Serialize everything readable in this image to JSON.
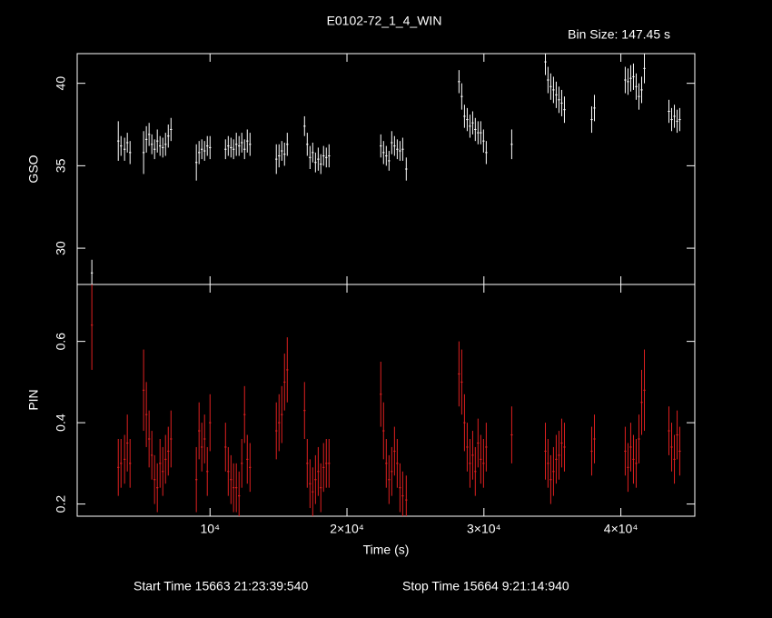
{
  "chart_data": [
    {
      "type": "errorbar",
      "title": "E0102-72_1_4_WIN",
      "subtitle": "Bin Size: 147.45 s",
      "ylabel": "GSO",
      "color": "#ffffff",
      "x": [
        1370,
        3300,
        3500,
        3760,
        3960,
        4160,
        5150,
        5350,
        5550,
        5750,
        5950,
        6150,
        6350,
        6550,
        6750,
        6950,
        7150,
        9000,
        9200,
        9400,
        9600,
        9800,
        10000,
        11130,
        11330,
        11530,
        11720,
        11920,
        12120,
        12320,
        12520,
        12720,
        12920,
        14840,
        15040,
        15240,
        15440,
        15640,
        16900,
        17100,
        17300,
        17500,
        17700,
        17900,
        18090,
        18290,
        18490,
        18690,
        22470,
        22670,
        22870,
        23070,
        23270,
        23470,
        23670,
        23870,
        24070,
        24330,
        28180,
        28380,
        28580,
        28780,
        28980,
        29180,
        29370,
        29570,
        29770,
        29970,
        30170,
        32030,
        34490,
        34680,
        34880,
        35080,
        35280,
        35480,
        35680,
        35880,
        37870,
        38070,
        40320,
        40520,
        40720,
        40920,
        41120,
        41320,
        41520,
        41720,
        43510,
        43710,
        43910,
        44110,
        44300
      ],
      "values": [
        28.5,
        36.5,
        36.2,
        36.0,
        36.4,
        35.8,
        35.8,
        36.6,
        36.9,
        36.3,
        36.0,
        36.5,
        36.2,
        36.1,
        36.3,
        36.8,
        37.2,
        35.2,
        35.8,
        36.0,
        35.9,
        36.2,
        36.1,
        36.0,
        36.2,
        36.1,
        36.0,
        36.3,
        36.2,
        36.4,
        36.0,
        36.5,
        36.3,
        35.4,
        35.6,
        35.9,
        35.7,
        36.3,
        37.4,
        36.3,
        35.5,
        35.8,
        35.2,
        35.4,
        35.1,
        35.6,
        35.5,
        35.6,
        36.2,
        35.8,
        35.6,
        35.3,
        36.4,
        36.2,
        36.0,
        35.9,
        36.0,
        34.8,
        40.1,
        39.2,
        38.0,
        37.8,
        37.4,
        37.6,
        37.2,
        37.0,
        37.0,
        36.5,
        35.8,
        36.3,
        41.3,
        40.2,
        39.8,
        39.6,
        39.3,
        39.0,
        38.8,
        38.4,
        37.8,
        38.5,
        40.2,
        40.1,
        40.3,
        40.4,
        39.8,
        39.2,
        39.6,
        40.9,
        38.3,
        37.8,
        38.0,
        37.7,
        37.8
      ],
      "errors": [
        0.8,
        1.2,
        0.6,
        0.7,
        0.6,
        0.7,
        1.3,
        0.8,
        0.7,
        0.6,
        0.6,
        0.7,
        0.6,
        0.6,
        0.7,
        0.7,
        0.7,
        1.1,
        0.7,
        0.6,
        0.6,
        0.6,
        0.7,
        0.6,
        0.6,
        0.6,
        0.6,
        0.7,
        0.6,
        0.6,
        0.6,
        0.7,
        0.7,
        0.9,
        0.7,
        0.6,
        0.7,
        0.7,
        0.6,
        0.7,
        0.7,
        0.6,
        0.6,
        0.7,
        0.6,
        0.6,
        0.6,
        0.7,
        0.7,
        0.7,
        0.6,
        0.6,
        0.7,
        0.6,
        0.6,
        0.6,
        0.7,
        0.7,
        0.7,
        0.8,
        0.7,
        0.7,
        0.7,
        0.7,
        0.7,
        0.7,
        0.7,
        0.7,
        0.7,
        0.9,
        0.8,
        0.8,
        0.8,
        0.8,
        0.8,
        0.8,
        0.8,
        0.8,
        0.8,
        0.8,
        0.8,
        0.8,
        0.8,
        0.8,
        0.8,
        0.8,
        0.8,
        0.9,
        0.7,
        0.7,
        0.7,
        0.7,
        0.7
      ],
      "xlim": [
        300,
        45400
      ],
      "ylim": [
        27.8,
        41.8
      ],
      "yticks": [
        30,
        35,
        40
      ]
    },
    {
      "type": "errorbar",
      "ylabel": "PIN",
      "xlabel": "Time (s)",
      "color": "#e02020",
      "x": [
        1370,
        3300,
        3500,
        3760,
        3960,
        4160,
        5150,
        5350,
        5550,
        5750,
        5950,
        6150,
        6350,
        6550,
        6750,
        6950,
        7150,
        9000,
        9200,
        9400,
        9600,
        9800,
        10000,
        11130,
        11330,
        11530,
        11720,
        11920,
        12120,
        12320,
        12520,
        12720,
        12920,
        14840,
        15040,
        15240,
        15440,
        15640,
        16900,
        17100,
        17300,
        17500,
        17700,
        17900,
        18090,
        18290,
        18490,
        18690,
        22470,
        22670,
        22870,
        23070,
        23270,
        23470,
        23670,
        23870,
        24070,
        24330,
        28180,
        28380,
        28580,
        28780,
        28980,
        29180,
        29370,
        29570,
        29770,
        29970,
        30170,
        32030,
        34490,
        34680,
        34880,
        35080,
        35280,
        35480,
        35680,
        35880,
        37870,
        38070,
        40320,
        40520,
        40720,
        40920,
        41120,
        41320,
        41520,
        41720,
        43510,
        43710,
        43910,
        44110,
        44300
      ],
      "values": [
        0.64,
        0.29,
        0.3,
        0.31,
        0.35,
        0.3,
        0.48,
        0.42,
        0.36,
        0.32,
        0.26,
        0.24,
        0.3,
        0.28,
        0.31,
        0.33,
        0.36,
        0.26,
        0.38,
        0.34,
        0.36,
        0.28,
        0.4,
        0.34,
        0.28,
        0.26,
        0.24,
        0.24,
        0.22,
        0.3,
        0.42,
        0.31,
        0.29,
        0.38,
        0.4,
        0.42,
        0.5,
        0.53,
        0.43,
        0.3,
        0.25,
        0.23,
        0.26,
        0.28,
        0.24,
        0.29,
        0.3,
        0.3,
        0.47,
        0.38,
        0.3,
        0.26,
        0.28,
        0.33,
        0.3,
        0.24,
        0.22,
        0.21,
        0.52,
        0.5,
        0.4,
        0.34,
        0.3,
        0.32,
        0.28,
        0.35,
        0.31,
        0.3,
        0.34,
        0.37,
        0.33,
        0.3,
        0.26,
        0.28,
        0.31,
        0.32,
        0.35,
        0.34,
        0.33,
        0.36,
        0.33,
        0.29,
        0.34,
        0.31,
        0.3,
        0.36,
        0.45,
        0.48,
        0.38,
        0.34,
        0.31,
        0.37,
        0.33
      ],
      "errors": [
        0.11,
        0.07,
        0.06,
        0.06,
        0.07,
        0.06,
        0.1,
        0.08,
        0.07,
        0.06,
        0.06,
        0.06,
        0.06,
        0.06,
        0.06,
        0.06,
        0.07,
        0.08,
        0.07,
        0.06,
        0.06,
        0.06,
        0.07,
        0.06,
        0.06,
        0.06,
        0.06,
        0.06,
        0.06,
        0.06,
        0.07,
        0.06,
        0.06,
        0.07,
        0.07,
        0.07,
        0.07,
        0.08,
        0.07,
        0.06,
        0.06,
        0.06,
        0.06,
        0.06,
        0.06,
        0.06,
        0.06,
        0.06,
        0.08,
        0.07,
        0.06,
        0.06,
        0.06,
        0.06,
        0.06,
        0.06,
        0.06,
        0.06,
        0.08,
        0.08,
        0.07,
        0.06,
        0.06,
        0.06,
        0.06,
        0.06,
        0.06,
        0.06,
        0.06,
        0.07,
        0.07,
        0.06,
        0.06,
        0.06,
        0.06,
        0.06,
        0.06,
        0.06,
        0.06,
        0.06,
        0.06,
        0.06,
        0.06,
        0.06,
        0.06,
        0.06,
        0.08,
        0.1,
        0.06,
        0.06,
        0.06,
        0.06,
        0.06
      ],
      "xlim": [
        300,
        45400
      ],
      "ylim": [
        0.17,
        0.74
      ],
      "yticks": [
        0.2,
        0.4,
        0.6
      ],
      "xticks": [
        {
          "value": 10000,
          "label": "10⁴"
        },
        {
          "value": 20000,
          "label": "2×10⁴"
        },
        {
          "value": 30000,
          "label": "3×10⁴"
        },
        {
          "value": 40000,
          "label": "4×10⁴"
        }
      ],
      "annotations": [
        "Start Time 15663 21:23:39:540",
        "Stop Time 15664  9:21:14:940"
      ]
    }
  ]
}
